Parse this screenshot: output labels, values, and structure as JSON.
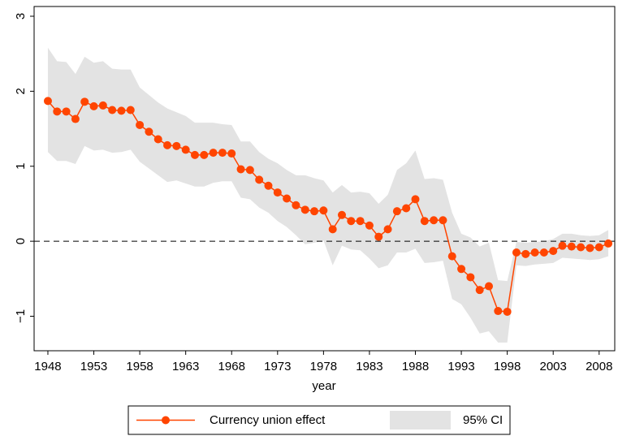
{
  "chart_data": {
    "type": "line",
    "x_label": "year",
    "x": [
      1948,
      1949,
      1950,
      1951,
      1952,
      1953,
      1954,
      1955,
      1956,
      1957,
      1958,
      1959,
      1960,
      1961,
      1962,
      1963,
      1964,
      1965,
      1966,
      1967,
      1968,
      1969,
      1970,
      1971,
      1972,
      1973,
      1974,
      1975,
      1976,
      1977,
      1978,
      1979,
      1980,
      1981,
      1982,
      1983,
      1984,
      1985,
      1986,
      1987,
      1988,
      1989,
      1990,
      1991,
      1992,
      1993,
      1994,
      1995,
      1996,
      1997,
      1998,
      1999,
      2000,
      2001,
      2002,
      2003,
      2004,
      2005,
      2006,
      2007,
      2008,
      2009
    ],
    "series": [
      {
        "name": "Currency union effect",
        "color": "#ff4500",
        "values": [
          1.87,
          1.73,
          1.73,
          1.63,
          1.86,
          1.8,
          1.81,
          1.75,
          1.74,
          1.75,
          1.55,
          1.46,
          1.36,
          1.28,
          1.27,
          1.22,
          1.15,
          1.15,
          1.18,
          1.18,
          1.17,
          0.96,
          0.95,
          0.82,
          0.74,
          0.65,
          0.57,
          0.48,
          0.42,
          0.4,
          0.41,
          0.16,
          0.35,
          0.27,
          0.27,
          0.21,
          0.06,
          0.16,
          0.4,
          0.44,
          0.56,
          0.27,
          0.28,
          0.28,
          -0.2,
          -0.37,
          -0.48,
          -0.65,
          -0.6,
          -0.93,
          -0.94,
          -0.15,
          -0.17,
          -0.15,
          -0.15,
          -0.13,
          -0.06,
          -0.07,
          -0.08,
          -0.09,
          -0.08,
          -0.03
        ]
      }
    ],
    "ci": {
      "name": "95% CI",
      "color": "#e3e3e3",
      "upper": [
        2.58,
        2.4,
        2.39,
        2.23,
        2.46,
        2.38,
        2.4,
        2.3,
        2.29,
        2.29,
        2.05,
        1.95,
        1.85,
        1.77,
        1.72,
        1.67,
        1.58,
        1.58,
        1.58,
        1.56,
        1.55,
        1.33,
        1.33,
        1.19,
        1.1,
        1.04,
        0.95,
        0.88,
        0.88,
        0.84,
        0.81,
        0.65,
        0.75,
        0.65,
        0.66,
        0.64,
        0.5,
        0.62,
        0.95,
        1.04,
        1.21,
        0.83,
        0.84,
        0.82,
        0.38,
        0.1,
        0.05,
        -0.07,
        -0.02,
        -0.52,
        -0.53,
        -0.01,
        -0.02,
        -0.01,
        0.0,
        0.03,
        0.1,
        0.1,
        0.08,
        0.07,
        0.08,
        0.15
      ],
      "lower": [
        1.19,
        1.07,
        1.07,
        1.03,
        1.27,
        1.21,
        1.22,
        1.18,
        1.19,
        1.22,
        1.06,
        0.97,
        0.88,
        0.79,
        0.81,
        0.77,
        0.73,
        0.73,
        0.78,
        0.8,
        0.8,
        0.58,
        0.56,
        0.45,
        0.38,
        0.27,
        0.19,
        0.08,
        -0.04,
        -0.02,
        0.01,
        -0.32,
        -0.06,
        -0.11,
        -0.12,
        -0.23,
        -0.36,
        -0.32,
        -0.15,
        -0.15,
        -0.1,
        -0.29,
        -0.28,
        -0.26,
        -0.77,
        -0.84,
        -1.02,
        -1.23,
        -1.2,
        -1.35,
        -1.35,
        -0.32,
        -0.33,
        -0.31,
        -0.3,
        -0.29,
        -0.22,
        -0.23,
        -0.24,
        -0.25,
        -0.24,
        -0.2
      ]
    },
    "hline": 0,
    "xlim": [
      1946.5,
      2009.7
    ],
    "ylim": [
      -1.46,
      3.13
    ],
    "xticks": [
      1948,
      1953,
      1958,
      1963,
      1968,
      1973,
      1978,
      1983,
      1988,
      1993,
      1998,
      2003,
      2008
    ],
    "yticks": [
      {
        "value": -1,
        "label": "−1"
      },
      0,
      1,
      2,
      3
    ],
    "legend": "bottom"
  }
}
